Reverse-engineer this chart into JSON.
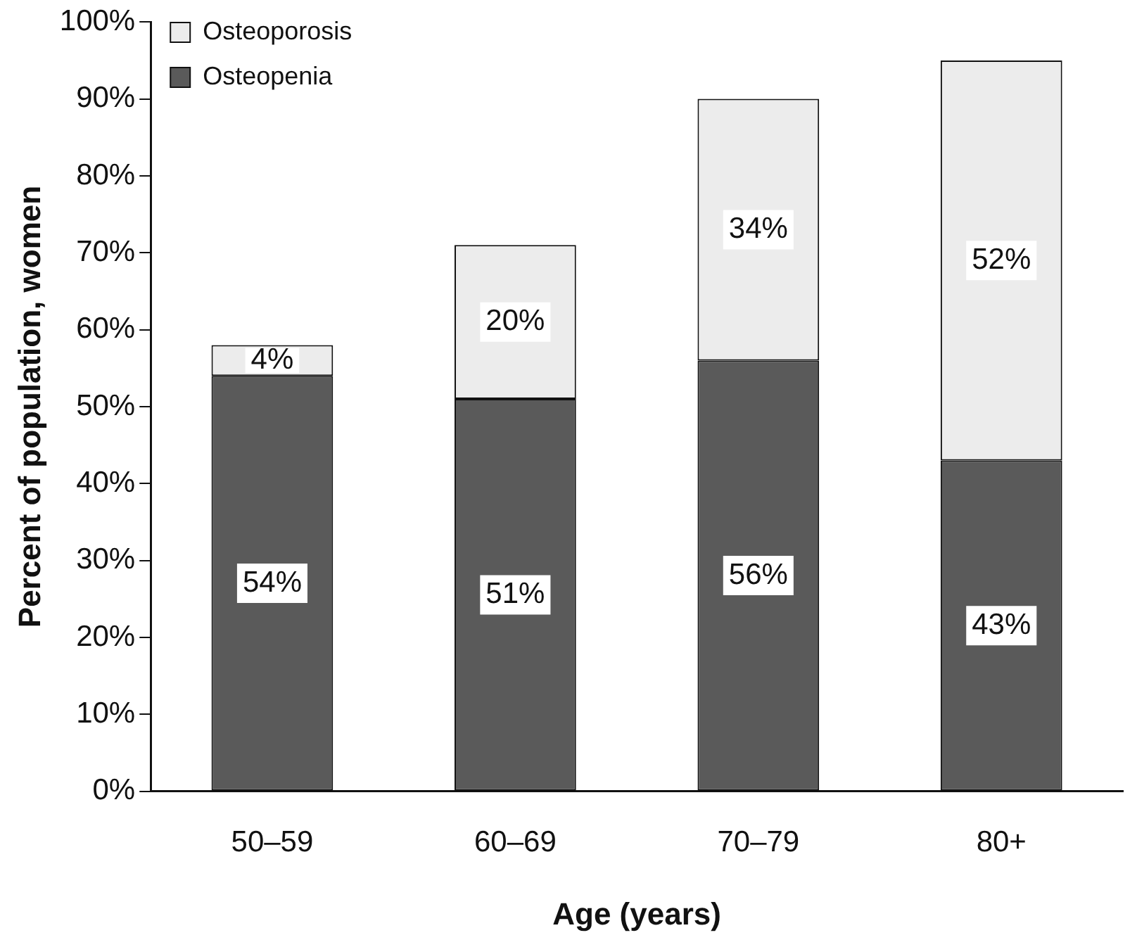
{
  "chart_data": {
    "type": "bar",
    "stacked": true,
    "xlabel": "Age (years)",
    "ylabel": "Percent of population, women",
    "categories": [
      "50–59",
      "60–69",
      "70–79",
      "80+"
    ],
    "series": [
      {
        "name": "Osteopenia",
        "color": "#5a5a5a",
        "values": [
          54,
          51,
          56,
          43
        ],
        "value_labels": [
          "54%",
          "51%",
          "56%",
          "43%"
        ]
      },
      {
        "name": "Osteoporosis",
        "color": "#ececec",
        "values": [
          4,
          20,
          34,
          52
        ],
        "value_labels": [
          "4%",
          "20%",
          "34%",
          "52%"
        ]
      }
    ],
    "ylim": [
      0,
      100
    ],
    "yticks": [
      {
        "value": 0,
        "label": "0%"
      },
      {
        "value": 10,
        "label": "10%"
      },
      {
        "value": 20,
        "label": "20%"
      },
      {
        "value": 30,
        "label": "30%"
      },
      {
        "value": 40,
        "label": "40%"
      },
      {
        "value": 50,
        "label": "50%"
      },
      {
        "value": 60,
        "label": "60%"
      },
      {
        "value": 70,
        "label": "70%"
      },
      {
        "value": 80,
        "label": "80%"
      },
      {
        "value": 90,
        "label": "90%"
      },
      {
        "value": 100,
        "label": "100%"
      }
    ],
    "grid": false,
    "legend": "top left"
  }
}
